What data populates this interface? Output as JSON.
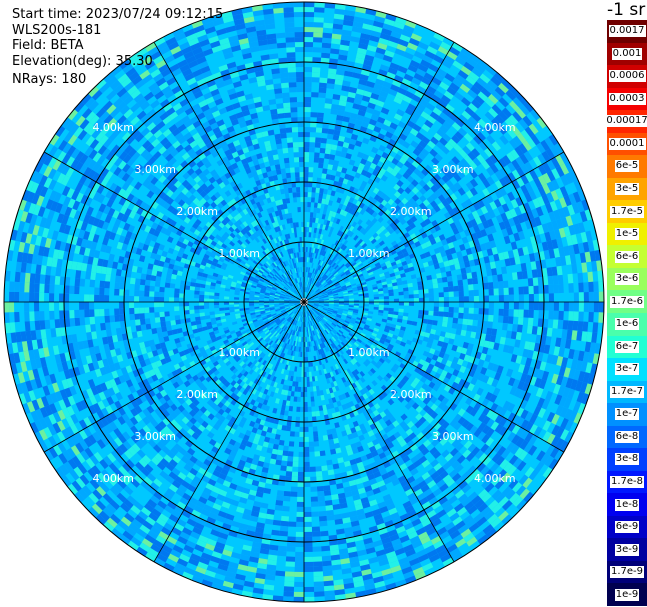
{
  "chart_data": {
    "type": "ppi-polar-heatmap",
    "header": {
      "start_time": "Start time: 2023/07/24 09:12:15",
      "instrument": "WLS200s-181",
      "field": "Field: BETA",
      "elevation": "Elevation(deg): 35.30",
      "nrays": "NRays: 180"
    },
    "center_color": "#ffffff",
    "grid": {
      "ring_labels": [
        "1.00km",
        "2.00km",
        "3.00km",
        "4.00km",
        "5.00km"
      ],
      "radial_angles_deg": [
        0,
        30,
        60,
        90,
        120,
        150,
        180,
        210,
        240,
        270,
        300,
        330
      ],
      "line_color": "#000000",
      "label_color": "#ffffff"
    },
    "colorbar": {
      "title": "-1 sr",
      "labels": [
        "0.0017",
        "0.001",
        "0.0006",
        "0.0003",
        "0.00017",
        "0.0001",
        "6e-5",
        "3e-5",
        "1.7e-5",
        "1e-5",
        "6e-6",
        "3e-6",
        "1.7e-6",
        "1e-6",
        "6e-7",
        "3e-7",
        "1.7e-7",
        "1e-7",
        "6e-8",
        "3e-8",
        "1.7e-8",
        "1e-8",
        "6e-9",
        "3e-9",
        "1.7e-9",
        "1e-9"
      ],
      "colors": [
        "#6f0000",
        "#a00000",
        "#d00000",
        "#f50000",
        "#ff2600",
        "#ff5000",
        "#ff7a00",
        "#ffa400",
        "#ffcc00",
        "#f0f000",
        "#c4ff32",
        "#9aff5c",
        "#70ff86",
        "#4affac",
        "#22ffd4",
        "#00e0ff",
        "#00b8ff",
        "#0090ff",
        "#0068ff",
        "#0040ff",
        "#0018ff",
        "#0000f0",
        "#0000c8",
        "#0000a0",
        "#000078",
        "#000050"
      ]
    },
    "field_palette": {
      "base": "#00c8ff",
      "mid": "#00a8ff",
      "dark": "#0078f0",
      "light": "#22f0e8",
      "green": "#6cf0a0"
    }
  }
}
